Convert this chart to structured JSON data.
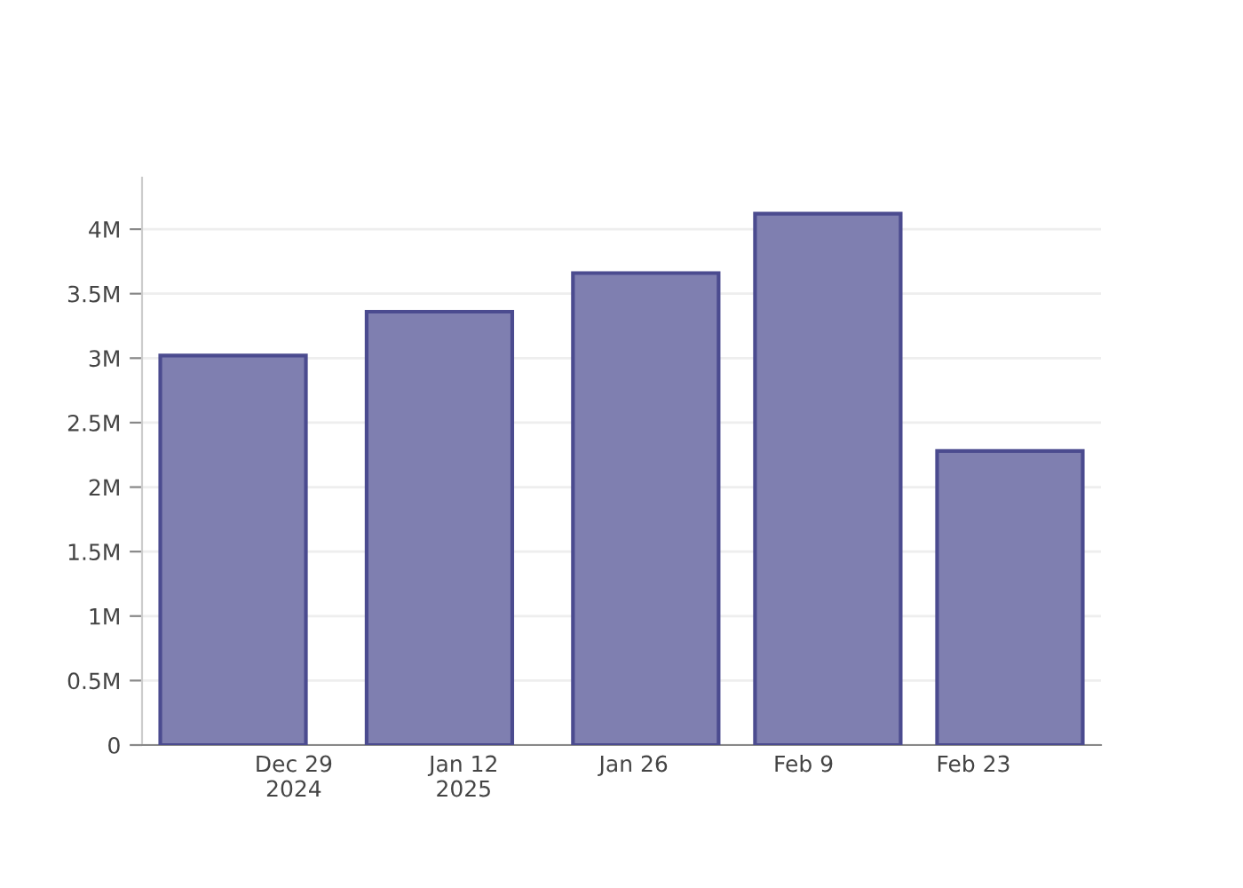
{
  "chart_data": {
    "type": "bar",
    "x": [
      "2024-12-24",
      "2025-01-10",
      "2025-01-27",
      "2025-02-11",
      "2025-02-26"
    ],
    "values": [
      3.02,
      3.36,
      3.66,
      4.12,
      2.28
    ],
    "color": "#7f7fb0",
    "xlim": [
      "2024-12-16T12:00",
      "2025-03-05T12:00"
    ],
    "xticks": [
      {
        "value": "2024-12-29",
        "label": "Dec 29\n2024"
      },
      {
        "value": "2025-01-12",
        "label": "Jan 12\n2025"
      },
      {
        "value": "2025-01-26",
        "label": "Jan 26"
      },
      {
        "value": "2025-02-09",
        "label": "Feb 9"
      },
      {
        "value": "2025-02-23",
        "label": "Feb 23"
      }
    ],
    "ylim": [
      0,
      4.4
    ],
    "yticks": [
      0,
      {
        "value": 0.5,
        "label": "0.5M"
      },
      {
        "value": 1,
        "label": "1M"
      },
      {
        "value": 1.5,
        "label": "1.5M"
      },
      {
        "value": 2,
        "label": "2M"
      },
      {
        "value": 2.5,
        "label": "2.5M"
      },
      {
        "value": 3,
        "label": "3M"
      },
      {
        "value": 3.5,
        "label": "3.5M"
      },
      {
        "value": 4,
        "label": "4M"
      }
    ],
    "grid": "y"
  }
}
